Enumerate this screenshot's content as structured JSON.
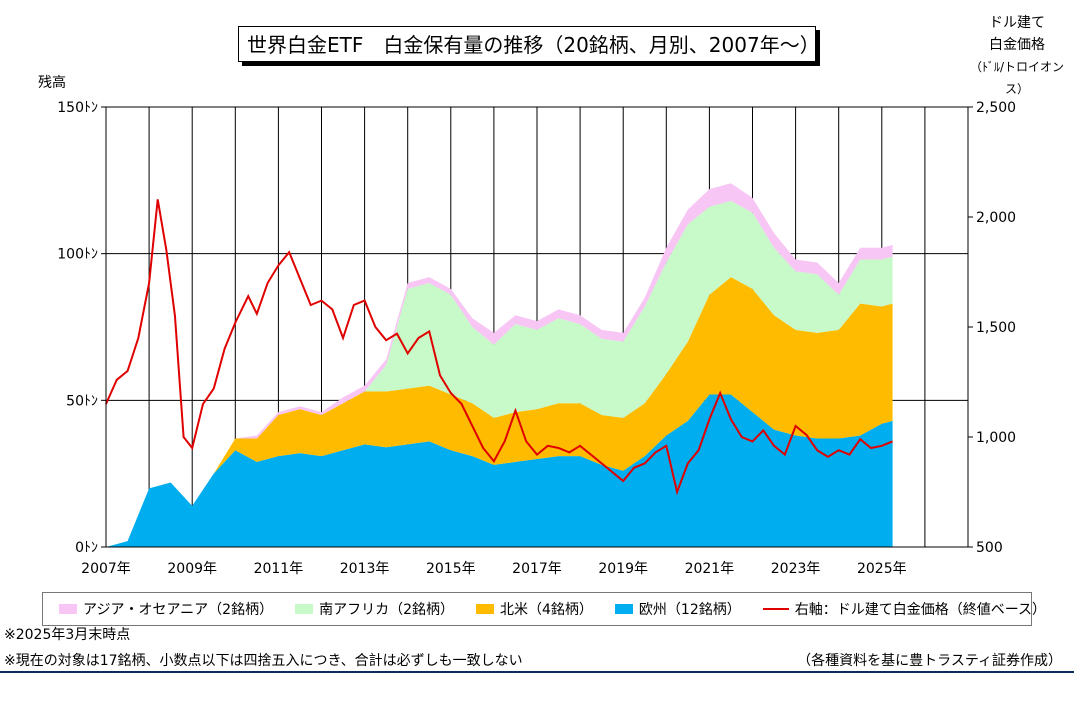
{
  "title": "世界白金ETF　白金保有量の推移（20銘柄、月別、2007年〜）",
  "left_unit": "残高",
  "right_unit_lines": [
    "ドル建て",
    "白金価格",
    "（ﾄﾞﾙ/トロイオンス）"
  ],
  "notes": [
    "※2025年3月末時点",
    "※現在の対象は17銘柄、小数点以下は四捨五入につき、合計は必ずしも一致しない"
  ],
  "source": "（各種資料を基に豊トラスティ証券作成）",
  "colors": {
    "asia_oceania": "#f7c6f4",
    "south_africa": "#c8f9c8",
    "north_america": "#ffbb00",
    "europe": "#00aeef",
    "price": "#e00000"
  },
  "chart_data": {
    "type": "area",
    "stacked": true,
    "grid": true,
    "x_tick_labels": [
      "2007年",
      "2009年",
      "2011年",
      "2013年",
      "2015年",
      "2017年",
      "2019年",
      "2021年",
      "2023年",
      "2025年"
    ],
    "left_axis": {
      "label": "残高",
      "ylim": [
        0,
        150
      ],
      "tick_labels": [
        "0ﾄﾝ",
        "50ﾄﾝ",
        "100ﾄﾝ",
        "150ﾄﾝ"
      ]
    },
    "right_axis": {
      "label": "ドル建て白金価格（ﾄﾞﾙ/トロイオンス）",
      "ylim": [
        500,
        2500
      ],
      "tick_labels": [
        "500",
        "1,000",
        "1,500",
        "2,000",
        "2,500"
      ]
    },
    "legend": [
      "アジア・オセアニア（2銘柄）",
      "南アフリカ（2銘柄）",
      "北米（4銘柄）",
      "欧州（12銘柄）",
      "右軸：ドル建て白金価格（終値ベース）"
    ],
    "x": [
      2007.0,
      2007.5,
      2008.0,
      2008.5,
      2009.0,
      2009.5,
      2010.0,
      2010.5,
      2011.0,
      2011.5,
      2012.0,
      2012.5,
      2013.0,
      2013.5,
      2014.0,
      2014.5,
      2015.0,
      2015.5,
      2016.0,
      2016.5,
      2017.0,
      2017.5,
      2018.0,
      2018.5,
      2019.0,
      2019.5,
      2020.0,
      2020.5,
      2021.0,
      2021.5,
      2022.0,
      2022.5,
      2023.0,
      2023.5,
      2024.0,
      2024.5,
      2025.0,
      2025.25
    ],
    "series": [
      {
        "name": "欧州（12銘柄）",
        "values": [
          0,
          2,
          20,
          22,
          14,
          25,
          33,
          29,
          31,
          32,
          31,
          33,
          35,
          34,
          35,
          36,
          33,
          31,
          28,
          29,
          30,
          31,
          31,
          28,
          26,
          31,
          38,
          43,
          52,
          52,
          46,
          40,
          38,
          37,
          37,
          38,
          42,
          43
        ]
      },
      {
        "name": "北米（4銘柄）",
        "values": [
          0,
          0,
          0,
          0,
          0,
          0,
          4,
          8,
          14,
          15,
          14,
          16,
          18,
          19,
          19,
          19,
          19,
          18,
          16,
          17,
          17,
          18,
          18,
          17,
          18,
          18,
          21,
          27,
          34,
          40,
          42,
          39,
          36,
          36,
          37,
          45,
          40,
          40
        ]
      },
      {
        "name": "南アフリカ（2銘柄）",
        "values": [
          0,
          0,
          0,
          0,
          0,
          0,
          0,
          0,
          0,
          0,
          0,
          0,
          0,
          9,
          34,
          35,
          34,
          26,
          25,
          30,
          27,
          29,
          27,
          26,
          26,
          33,
          38,
          40,
          30,
          26,
          26,
          23,
          20,
          20,
          12,
          15,
          16,
          16
        ]
      },
      {
        "name": "アジア・オセアニア（2銘柄）",
        "values": [
          0,
          0,
          0,
          0,
          0,
          0,
          0,
          1,
          1,
          1,
          1,
          2,
          2,
          2,
          2,
          2,
          2,
          3,
          4,
          3,
          3,
          3,
          3,
          3,
          3,
          3,
          5,
          5,
          6,
          6,
          5,
          5,
          4,
          4,
          4,
          4,
          4,
          4
        ]
      }
    ],
    "price_series": {
      "name": "右軸：ドル建て白金価格（終値ベース）",
      "axis": "right",
      "x": [
        2007.0,
        2007.25,
        2007.5,
        2007.75,
        2008.0,
        2008.2,
        2008.4,
        2008.6,
        2008.8,
        2009.0,
        2009.25,
        2009.5,
        2009.75,
        2010.0,
        2010.3,
        2010.5,
        2010.75,
        2011.0,
        2011.25,
        2011.5,
        2011.75,
        2012.0,
        2012.25,
        2012.5,
        2012.75,
        2013.0,
        2013.25,
        2013.5,
        2013.75,
        2014.0,
        2014.25,
        2014.5,
        2014.75,
        2015.0,
        2015.25,
        2015.5,
        2015.75,
        2016.0,
        2016.25,
        2016.5,
        2016.75,
        2017.0,
        2017.25,
        2017.5,
        2017.75,
        2018.0,
        2018.25,
        2018.5,
        2018.75,
        2019.0,
        2019.25,
        2019.5,
        2019.75,
        2020.0,
        2020.25,
        2020.5,
        2020.75,
        2021.0,
        2021.25,
        2021.5,
        2021.75,
        2022.0,
        2022.25,
        2022.5,
        2022.75,
        2023.0,
        2023.25,
        2023.5,
        2023.75,
        2024.0,
        2024.25,
        2024.5,
        2024.75,
        2025.0,
        2025.25
      ],
      "values": [
        1150,
        1260,
        1300,
        1450,
        1700,
        2080,
        1850,
        1550,
        1000,
        950,
        1150,
        1220,
        1400,
        1520,
        1640,
        1560,
        1700,
        1780,
        1840,
        1720,
        1600,
        1620,
        1580,
        1450,
        1600,
        1620,
        1500,
        1440,
        1470,
        1380,
        1450,
        1480,
        1280,
        1200,
        1150,
        1050,
        950,
        890,
        980,
        1120,
        980,
        920,
        960,
        950,
        930,
        960,
        920,
        880,
        840,
        800,
        860,
        880,
        930,
        960,
        750,
        880,
        940,
        1080,
        1200,
        1080,
        1000,
        980,
        1030,
        960,
        920,
        1050,
        1010,
        940,
        910,
        940,
        920,
        990,
        950,
        960,
        980
      ]
    }
  }
}
